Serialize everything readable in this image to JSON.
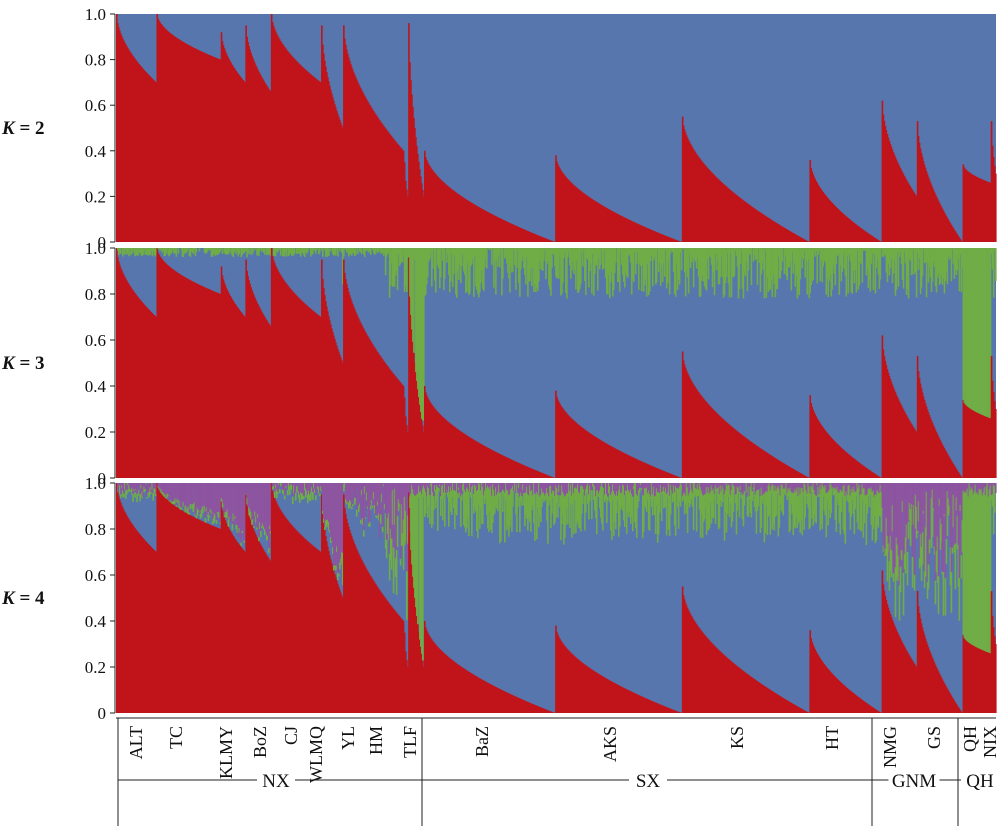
{
  "chart_data": {
    "type": "bar",
    "subtype": "stacked-admixture",
    "colors": {
      "red": "#c0141a",
      "blue": "#5676ad",
      "green": "#70ad47",
      "purple": "#8d55a0"
    },
    "y_ticks": [
      "0",
      "0.2",
      "0.4",
      "0.6",
      "0.8",
      "1.0"
    ],
    "ylim": [
      0,
      1
    ],
    "panels": [
      {
        "k_prefix": "K",
        "k_value": " = 2",
        "components": [
          "red",
          "blue"
        ]
      },
      {
        "k_prefix": "K",
        "k_value": " = 3",
        "components": [
          "red",
          "blue",
          "green"
        ]
      },
      {
        "k_prefix": "K",
        "k_value": " = 4",
        "components": [
          "red",
          "blue",
          "green",
          "purple"
        ]
      }
    ],
    "populations": [
      {
        "name": "ALT",
        "start": 0.0,
        "end": 0.046,
        "red": [
          1.0,
          0.7
        ]
      },
      {
        "name": "TC",
        "start": 0.046,
        "end": 0.119,
        "red": [
          1.0,
          0.8
        ]
      },
      {
        "name": "KLMY",
        "start": 0.119,
        "end": 0.147,
        "red": [
          0.92,
          0.7
        ]
      },
      {
        "name": "BoZ",
        "start": 0.147,
        "end": 0.176,
        "red": [
          0.95,
          0.66
        ]
      },
      {
        "name": "CJ",
        "start": 0.176,
        "end": 0.233,
        "red": [
          1.0,
          0.7
        ]
      },
      {
        "name": "WLMQ",
        "start": 0.233,
        "end": 0.258,
        "red": [
          0.95,
          0.5
        ]
      },
      {
        "name": "YL",
        "start": 0.258,
        "end": 0.327,
        "red": [
          0.95,
          0.4
        ]
      },
      {
        "name": "HM",
        "start": 0.327,
        "end": 0.332,
        "red": [
          0.35,
          0.2
        ]
      },
      {
        "name": "TLF",
        "start": 0.332,
        "end": 0.35,
        "red": [
          0.96,
          0.2
        ]
      },
      {
        "name": "BaZ",
        "start": 0.35,
        "end": 0.499,
        "red": [
          0.4,
          0.0
        ]
      },
      {
        "name": "AKS",
        "start": 0.499,
        "end": 0.643,
        "red": [
          0.38,
          0.0
        ]
      },
      {
        "name": "KS",
        "start": 0.643,
        "end": 0.788,
        "red": [
          0.55,
          0.0
        ]
      },
      {
        "name": "HT",
        "start": 0.788,
        "end": 0.87,
        "red": [
          0.36,
          0.0
        ]
      },
      {
        "name": "NMG",
        "start": 0.87,
        "end": 0.91,
        "red": [
          0.62,
          0.2
        ]
      },
      {
        "name": "GS",
        "start": 0.91,
        "end": 0.962,
        "red": [
          0.53,
          0.0
        ]
      },
      {
        "name": "QH",
        "start": 0.962,
        "end": 0.994,
        "red": [
          0.34,
          0.26
        ]
      },
      {
        "name": "NIX",
        "start": 0.994,
        "end": 1.0,
        "red": [
          0.53,
          0.3
        ]
      }
    ],
    "groups": [
      {
        "name": "NX",
        "start": 0.0,
        "end": 0.35
      },
      {
        "name": "SX",
        "start": 0.35,
        "end": 0.87
      },
      {
        "name": "GNM",
        "start": 0.87,
        "end": 0.962
      },
      {
        "name": "QH",
        "start": 0.962,
        "end": 1.0
      }
    ]
  }
}
